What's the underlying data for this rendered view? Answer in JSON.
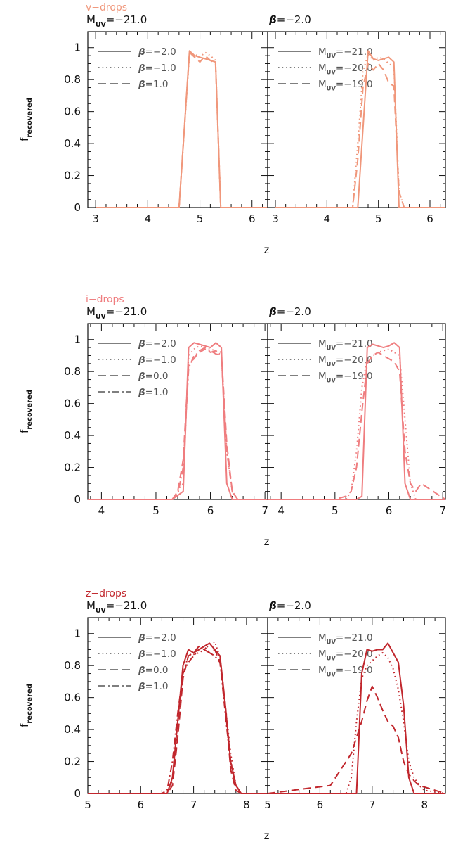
{
  "chart_data": [
    {
      "type": "line",
      "sample_label": "v−drops",
      "color": "#f0977b",
      "ylabel_main": "f",
      "ylabel_sub": "recovered",
      "xlabel": "z",
      "ylim": [
        0,
        1.1
      ],
      "yticks": [
        "0",
        "0.2",
        "0.4",
        "0.6",
        "0.8",
        "1"
      ],
      "yticks_v": [
        0,
        0.2,
        0.4,
        0.6,
        0.8,
        1
      ],
      "left": {
        "title_sym": "M",
        "title_sub": "UV",
        "title_rest": "=−21.0",
        "xlim": [
          2.85,
          6.3
        ],
        "xticks": [
          "3",
          "4",
          "5",
          "6"
        ],
        "xticks_v": [
          3,
          4,
          5,
          6
        ],
        "legend": [
          {
            "sym": "β",
            "text": "=−2.0",
            "dash": "solid"
          },
          {
            "sym": "β",
            "text": "=−1.0",
            "dash": "dotted"
          },
          {
            "sym": "β",
            "text": "=1.0",
            "dash": "dashed"
          }
        ],
        "series": [
          {
            "dash": "solid",
            "x": [
              3,
              4.6,
              4.8,
              4.9,
              5.0,
              5.1,
              5.2,
              5.3,
              5.4,
              5.5,
              6.3
            ],
            "y": [
              0,
              0,
              0.98,
              0.95,
              0.94,
              0.93,
              0.92,
              0.91,
              0,
              0,
              0
            ]
          },
          {
            "dash": "dotted",
            "x": [
              3,
              4.6,
              4.8,
              4.9,
              5.0,
              5.1,
              5.2,
              5.3,
              5.4,
              5.5,
              6.3
            ],
            "y": [
              0,
              0,
              0.96,
              0.96,
              0.94,
              0.97,
              0.95,
              0.92,
              0,
              0,
              0
            ]
          },
          {
            "dash": "dashed",
            "x": [
              3,
              4.6,
              4.8,
              4.9,
              5.0,
              5.1,
              5.2,
              5.3,
              5.4,
              5.5,
              6.3
            ],
            "y": [
              0,
              0,
              0.97,
              0.94,
              0.91,
              0.95,
              0.92,
              0.9,
              0,
              0,
              0
            ]
          }
        ]
      },
      "right": {
        "title_sym": "β",
        "title_rest": "=−2.0",
        "xlim": [
          2.85,
          6.3
        ],
        "xticks": [
          "3",
          "4",
          "5",
          "6"
        ],
        "xticks_v": [
          3,
          4,
          5,
          6
        ],
        "legend": [
          {
            "sym": "M",
            "sub": "UV",
            "text": "=−21.0",
            "dash": "solid"
          },
          {
            "sym": "M",
            "sub": "UV",
            "text": "=−20.0",
            "dash": "dotted"
          },
          {
            "sym": "M",
            "sub": "UV",
            "text": "=−19.0",
            "dash": "dashed"
          }
        ],
        "series": [
          {
            "dash": "solid",
            "x": [
              3,
              4.6,
              4.8,
              4.9,
              5.0,
              5.1,
              5.2,
              5.3,
              5.4,
              5.5,
              6.3
            ],
            "y": [
              0,
              0,
              0.98,
              0.93,
              0.92,
              0.93,
              0.94,
              0.91,
              0,
              0,
              0
            ]
          },
          {
            "dash": "dotted",
            "x": [
              3,
              4.5,
              4.6,
              4.7,
              4.8,
              4.9,
              5.0,
              5.1,
              5.2,
              5.3,
              5.4,
              5.5,
              6.3
            ],
            "y": [
              0,
              0,
              0.4,
              0.85,
              0.96,
              0.92,
              0.94,
              0.93,
              0.9,
              0.88,
              0.1,
              0,
              0
            ]
          },
          {
            "dash": "dashed",
            "x": [
              3,
              4.5,
              4.6,
              4.7,
              4.8,
              4.9,
              5.0,
              5.1,
              5.2,
              5.3,
              5.4,
              5.5,
              6.3
            ],
            "y": [
              0,
              0,
              0.3,
              0.75,
              0.9,
              0.86,
              0.9,
              0.86,
              0.78,
              0.76,
              0.1,
              0,
              0
            ]
          }
        ]
      }
    },
    {
      "type": "line",
      "sample_label": "i−drops",
      "color": "#ef7d7f",
      "ylabel_main": "f",
      "ylabel_sub": "recovered",
      "xlabel": "z",
      "ylim": [
        0,
        1.1
      ],
      "yticks": [
        "0",
        "0.2",
        "0.4",
        "0.6",
        "0.8",
        "1"
      ],
      "yticks_v": [
        0,
        0.2,
        0.4,
        0.6,
        0.8,
        1
      ],
      "left": {
        "title_sym": "M",
        "title_sub": "UV",
        "title_rest": "=−21.0",
        "xlim": [
          3.75,
          7.05
        ],
        "xticks": [
          "4",
          "5",
          "6",
          "7"
        ],
        "xticks_v": [
          4,
          5,
          6,
          7
        ],
        "legend": [
          {
            "sym": "β",
            "text": "=−2.0",
            "dash": "solid"
          },
          {
            "sym": "β",
            "text": "=−1.0",
            "dash": "dotted"
          },
          {
            "sym": "β",
            "text": "=0.0",
            "dash": "dashed"
          },
          {
            "sym": "β",
            "text": "=1.0",
            "dash": "dashdot"
          }
        ],
        "series": [
          {
            "dash": "solid",
            "x": [
              3.75,
              5.3,
              5.5,
              5.6,
              5.7,
              5.8,
              5.9,
              6.0,
              6.1,
              6.2,
              6.3,
              6.4,
              6.5,
              7.05
            ],
            "y": [
              0,
              0,
              0.05,
              0.95,
              0.98,
              0.97,
              0.96,
              0.95,
              0.98,
              0.95,
              0.1,
              0,
              0,
              0
            ]
          },
          {
            "dash": "dotted",
            "x": [
              3.75,
              5.3,
              5.5,
              5.6,
              5.7,
              5.8,
              5.9,
              6.0,
              6.1,
              6.2,
              6.3,
              6.4,
              6.5,
              7.05
            ],
            "y": [
              0,
              0,
              0.1,
              0.9,
              0.94,
              0.96,
              0.95,
              0.94,
              0.93,
              0.9,
              0.3,
              0.05,
              0,
              0
            ]
          },
          {
            "dash": "dashed",
            "x": [
              3.75,
              5.3,
              5.4,
              5.5,
              5.6,
              5.7,
              5.8,
              5.9,
              6.0,
              6.1,
              6.2,
              6.3,
              6.4,
              6.5,
              7.05
            ],
            "y": [
              0,
              0,
              0.05,
              0.25,
              0.85,
              0.88,
              0.93,
              0.95,
              0.92,
              0.93,
              0.92,
              0.35,
              0.05,
              0,
              0
            ]
          },
          {
            "dash": "dashdot",
            "x": [
              3.75,
              5.3,
              5.4,
              5.5,
              5.6,
              5.7,
              5.8,
              5.9,
              6.0,
              6.1,
              6.2,
              6.3,
              6.4,
              6.5,
              7.05
            ],
            "y": [
              0,
              0,
              0.03,
              0.2,
              0.82,
              0.9,
              0.92,
              0.94,
              0.93,
              0.91,
              0.9,
              0.3,
              0.05,
              0,
              0
            ]
          }
        ]
      },
      "right": {
        "title_sym": "β",
        "title_rest": "=−2.0",
        "xlim": [
          3.75,
          7.05
        ],
        "xticks": [
          "4",
          "5",
          "6",
          "7"
        ],
        "xticks_v": [
          4,
          5,
          6,
          7
        ],
        "legend": [
          {
            "sym": "M",
            "sub": "UV",
            "text": "=−21.0",
            "dash": "solid"
          },
          {
            "sym": "M",
            "sub": "UV",
            "text": "=−20.0",
            "dash": "dotted"
          },
          {
            "sym": "M",
            "sub": "UV",
            "text": "=−19.0",
            "dash": "dashed"
          }
        ],
        "series": [
          {
            "dash": "solid",
            "x": [
              3.75,
              5.4,
              5.5,
              5.6,
              5.7,
              5.8,
              5.9,
              6.0,
              6.1,
              6.2,
              6.3,
              6.4,
              7.05
            ],
            "y": [
              0,
              0,
              0.02,
              0.95,
              0.97,
              0.96,
              0.95,
              0.96,
              0.98,
              0.95,
              0.1,
              0,
              0
            ]
          },
          {
            "dash": "dotted",
            "x": [
              3.75,
              5.2,
              5.3,
              5.4,
              5.5,
              5.6,
              5.7,
              5.8,
              5.9,
              6.0,
              6.1,
              6.2,
              6.3,
              6.4,
              6.5,
              7.05
            ],
            "y": [
              0,
              0,
              0.05,
              0.3,
              0.7,
              0.88,
              0.9,
              0.92,
              0.93,
              0.94,
              0.92,
              0.9,
              0.5,
              0.1,
              0,
              0
            ]
          },
          {
            "dash": "dashed",
            "x": [
              3.75,
              5.0,
              5.2,
              5.3,
              5.4,
              5.5,
              5.6,
              5.7,
              5.8,
              5.9,
              6.0,
              6.1,
              6.2,
              6.3,
              6.4,
              6.5,
              6.6,
              7.05
            ],
            "y": [
              0,
              0,
              0.02,
              0.05,
              0.2,
              0.55,
              0.85,
              0.9,
              0.92,
              0.9,
              0.88,
              0.86,
              0.8,
              0.3,
              0.1,
              0.05,
              0.1,
              0
            ]
          }
        ]
      }
    },
    {
      "type": "line",
      "sample_label": "z−drops",
      "color": "#c1272d",
      "ylabel_main": "f",
      "ylabel_sub": "recovered",
      "xlabel": "z",
      "ylim": [
        0,
        1.1
      ],
      "yticks": [
        "0",
        "0.2",
        "0.4",
        "0.6",
        "0.8",
        "1"
      ],
      "yticks_v": [
        0,
        0.2,
        0.4,
        0.6,
        0.8,
        1
      ],
      "left": {
        "title_sym": "M",
        "title_sub": "UV",
        "title_rest": "=−21.0",
        "xlim": [
          5.0,
          8.4
        ],
        "xticks": [
          "5",
          "6",
          "7",
          "8"
        ],
        "xticks_v": [
          5,
          6,
          7,
          8
        ],
        "legend": [
          {
            "sym": "β",
            "text": "=−2.0",
            "dash": "solid"
          },
          {
            "sym": "β",
            "text": "=−1.0",
            "dash": "dotted"
          },
          {
            "sym": "β",
            "text": "=0.0",
            "dash": "dashed"
          },
          {
            "sym": "β",
            "text": "=1.0",
            "dash": "dashdot"
          }
        ],
        "series": [
          {
            "dash": "solid",
            "x": [
              5.0,
              6.5,
              6.6,
              6.7,
              6.8,
              6.9,
              7.0,
              7.1,
              7.2,
              7.3,
              7.4,
              7.5,
              7.6,
              7.7,
              7.8,
              7.9,
              8.4
            ],
            "y": [
              0,
              0,
              0.1,
              0.45,
              0.8,
              0.9,
              0.88,
              0.9,
              0.92,
              0.94,
              0.9,
              0.86,
              0.55,
              0.2,
              0.05,
              0,
              0
            ]
          },
          {
            "dash": "dotted",
            "x": [
              5.0,
              6.5,
              6.6,
              6.7,
              6.8,
              6.9,
              7.0,
              7.1,
              7.2,
              7.3,
              7.4,
              7.5,
              7.6,
              7.7,
              7.8,
              7.9,
              8.4
            ],
            "y": [
              0,
              0,
              0.08,
              0.4,
              0.75,
              0.86,
              0.87,
              0.88,
              0.9,
              0.93,
              0.95,
              0.85,
              0.55,
              0.25,
              0.05,
              0,
              0
            ]
          },
          {
            "dash": "dashed",
            "x": [
              5.0,
              6.5,
              6.6,
              6.7,
              6.8,
              6.9,
              7.0,
              7.1,
              7.2,
              7.3,
              7.4,
              7.5,
              7.6,
              7.7,
              7.8,
              7.9,
              8.4
            ],
            "y": [
              0,
              0,
              0.05,
              0.35,
              0.72,
              0.86,
              0.88,
              0.92,
              0.9,
              0.88,
              0.9,
              0.82,
              0.55,
              0.15,
              0.02,
              0,
              0
            ]
          },
          {
            "dash": "dashdot",
            "x": [
              5.0,
              6.4,
              6.5,
              6.6,
              6.7,
              6.8,
              6.9,
              7.0,
              7.1,
              7.2,
              7.3,
              7.4,
              7.5,
              7.6,
              7.7,
              7.8,
              7.9,
              8.4
            ],
            "y": [
              0,
              0,
              0.02,
              0.2,
              0.5,
              0.75,
              0.82,
              0.86,
              0.9,
              0.92,
              0.88,
              0.86,
              0.82,
              0.5,
              0.18,
              0.05,
              0,
              0
            ]
          }
        ]
      },
      "right": {
        "title_sym": "β",
        "title_rest": "=−2.0",
        "xlim": [
          5.0,
          8.4
        ],
        "xticks": [
          "5",
          "6",
          "7",
          "8"
        ],
        "xticks_v": [
          5,
          6,
          7,
          8
        ],
        "legend": [
          {
            "sym": "M",
            "sub": "UV",
            "text": "=−21.0",
            "dash": "solid"
          },
          {
            "sym": "M",
            "sub": "UV",
            "text": "=−20.0",
            "dash": "dotted"
          },
          {
            "sym": "M",
            "sub": "UV",
            "text": "=−19.0",
            "dash": "dashed"
          }
        ],
        "series": [
          {
            "dash": "solid",
            "x": [
              5.0,
              6.7,
              6.8,
              6.9,
              7.0,
              7.1,
              7.2,
              7.3,
              7.4,
              7.5,
              7.6,
              7.7,
              7.8,
              8.4
            ],
            "y": [
              0,
              0,
              0.75,
              0.9,
              0.89,
              0.9,
              0.9,
              0.94,
              0.88,
              0.82,
              0.55,
              0.1,
              0,
              0
            ]
          },
          {
            "dash": "dotted",
            "x": [
              5.0,
              6.5,
              6.6,
              6.7,
              6.8,
              6.9,
              7.0,
              7.1,
              7.2,
              7.3,
              7.4,
              7.5,
              7.6,
              7.7,
              7.8,
              7.9,
              8.0,
              8.4
            ],
            "y": [
              0,
              0,
              0.1,
              0.45,
              0.72,
              0.8,
              0.83,
              0.86,
              0.88,
              0.85,
              0.78,
              0.65,
              0.45,
              0.2,
              0.1,
              0.05,
              0.02,
              0
            ]
          },
          {
            "dash": "dashed",
            "x": [
              5.0,
              6.2,
              6.3,
              6.4,
              6.5,
              6.6,
              6.7,
              6.8,
              6.9,
              7.0,
              7.1,
              7.2,
              7.3,
              7.4,
              7.5,
              7.6,
              7.7,
              7.8,
              7.9,
              8.4
            ],
            "y": [
              0,
              0.05,
              0.1,
              0.15,
              0.2,
              0.25,
              0.35,
              0.45,
              0.58,
              0.67,
              0.6,
              0.52,
              0.45,
              0.42,
              0.35,
              0.2,
              0.12,
              0.08,
              0.05,
              0
            ]
          }
        ]
      }
    }
  ]
}
